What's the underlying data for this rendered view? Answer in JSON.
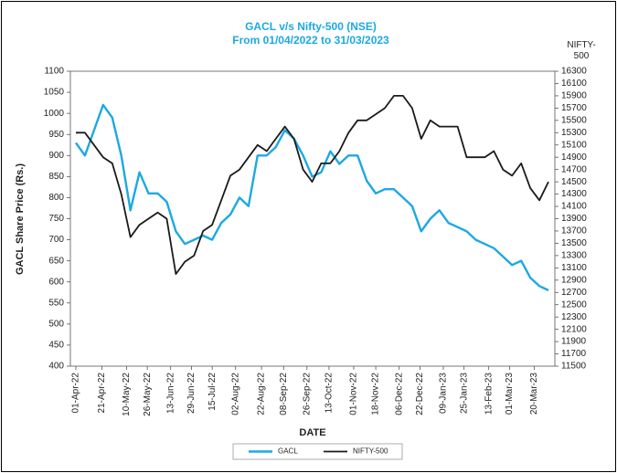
{
  "chart_data": {
    "type": "line",
    "title": "GACL v/s Nifty-500 (NSE)",
    "subtitle": "From 01/04/2022 to 31/03/2023",
    "xlabel": "DATE",
    "ylabel": "GACL Share Price (Rs.)",
    "y2label": "NIFTY-500",
    "x": [
      "2022-04-01",
      "2022-04-08",
      "2022-04-15",
      "2022-04-22",
      "2022-04-29",
      "2022-05-06",
      "2022-05-13",
      "2022-05-20",
      "2022-05-27",
      "2022-06-03",
      "2022-06-10",
      "2022-06-17",
      "2022-06-24",
      "2022-07-01",
      "2022-07-08",
      "2022-07-15",
      "2022-07-22",
      "2022-07-29",
      "2022-08-05",
      "2022-08-12",
      "2022-08-19",
      "2022-08-26",
      "2022-09-02",
      "2022-09-09",
      "2022-09-16",
      "2022-09-23",
      "2022-09-30",
      "2022-10-07",
      "2022-10-14",
      "2022-10-21",
      "2022-10-28",
      "2022-11-04",
      "2022-11-11",
      "2022-11-18",
      "2022-11-25",
      "2022-12-02",
      "2022-12-09",
      "2022-12-16",
      "2022-12-23",
      "2022-12-30",
      "2023-01-06",
      "2023-01-13",
      "2023-01-20",
      "2023-01-27",
      "2023-02-03",
      "2023-02-10",
      "2023-02-17",
      "2023-02-24",
      "2023-03-03",
      "2023-03-10",
      "2023-03-17",
      "2023-03-24",
      "2023-03-31"
    ],
    "series": [
      {
        "name": "GACL",
        "color": "#1ca9e1",
        "axis": "y",
        "values": [
          930,
          900,
          960,
          1020,
          990,
          900,
          770,
          860,
          810,
          810,
          790,
          720,
          690,
          700,
          710,
          700,
          740,
          760,
          800,
          780,
          900,
          900,
          920,
          960,
          940,
          900,
          850,
          860,
          910,
          880,
          900,
          900,
          840,
          810,
          820,
          820,
          800,
          780,
          720,
          750,
          770,
          740,
          730,
          720,
          700,
          690,
          680,
          660,
          640,
          650,
          610,
          590,
          580
        ]
      },
      {
        "name": "NIFTY-500",
        "color": "#1a1a1a",
        "axis": "y2",
        "values": [
          15300,
          15300,
          15100,
          14900,
          14800,
          14300,
          13600,
          13800,
          13900,
          14000,
          13900,
          13000,
          13200,
          13300,
          13700,
          13800,
          14200,
          14600,
          14700,
          14900,
          15100,
          15000,
          15200,
          15400,
          15200,
          14700,
          14500,
          14800,
          14800,
          15000,
          15300,
          15500,
          15500,
          15600,
          15700,
          15900,
          15900,
          15700,
          15200,
          15500,
          15400,
          15400,
          15400,
          14900,
          14900,
          14900,
          15000,
          14700,
          14600,
          14800,
          14400,
          14200,
          14500
        ]
      }
    ],
    "xlim": [
      "2022-04-01",
      "2023-03-31"
    ],
    "xticks": [
      {
        "value": "2022-04-01",
        "label": "01-Apr-22"
      },
      {
        "value": "2022-04-21",
        "label": "21-Apr-22"
      },
      {
        "value": "2022-05-10",
        "label": "10-May-22"
      },
      {
        "value": "2022-05-26",
        "label": "26-May-22"
      },
      {
        "value": "2022-06-13",
        "label": "13-Jun-22"
      },
      {
        "value": "2022-06-29",
        "label": "29-Jun-22"
      },
      {
        "value": "2022-07-15",
        "label": "15-Jul-22"
      },
      {
        "value": "2022-08-02",
        "label": "02-Aug-22"
      },
      {
        "value": "2022-08-22",
        "label": "22-Aug-22"
      },
      {
        "value": "2022-09-08",
        "label": "08-Sep-22"
      },
      {
        "value": "2022-09-26",
        "label": "26-Sep-22"
      },
      {
        "value": "2022-10-13",
        "label": "13-Oct-22"
      },
      {
        "value": "2022-11-01",
        "label": "01-Nov-22"
      },
      {
        "value": "2022-11-18",
        "label": "18-Nov-22"
      },
      {
        "value": "2022-12-06",
        "label": "06-Dec-22"
      },
      {
        "value": "2022-12-22",
        "label": "22-Dec-22"
      },
      {
        "value": "2023-01-09",
        "label": "09-Jan-23"
      },
      {
        "value": "2023-01-25",
        "label": "25-Jan-23"
      },
      {
        "value": "2023-02-13",
        "label": "13-Feb-23"
      },
      {
        "value": "2023-03-01",
        "label": "01-Mar-23"
      },
      {
        "value": "2023-03-20",
        "label": "20-Mar-23"
      }
    ],
    "ylim": [
      400,
      1100
    ],
    "yticks": [
      400,
      450,
      500,
      550,
      600,
      650,
      700,
      750,
      800,
      850,
      900,
      950,
      1000,
      1050,
      1100
    ],
    "y2lim": [
      11500,
      16300
    ],
    "y2ticks": [
      11500,
      11700,
      11900,
      12100,
      12300,
      12500,
      12700,
      12900,
      13100,
      13300,
      13500,
      13700,
      13900,
      14100,
      14300,
      14500,
      14700,
      14900,
      15100,
      15300,
      15500,
      15700,
      15900,
      16100,
      16300
    ],
    "grid": false,
    "legend": "bottom"
  }
}
